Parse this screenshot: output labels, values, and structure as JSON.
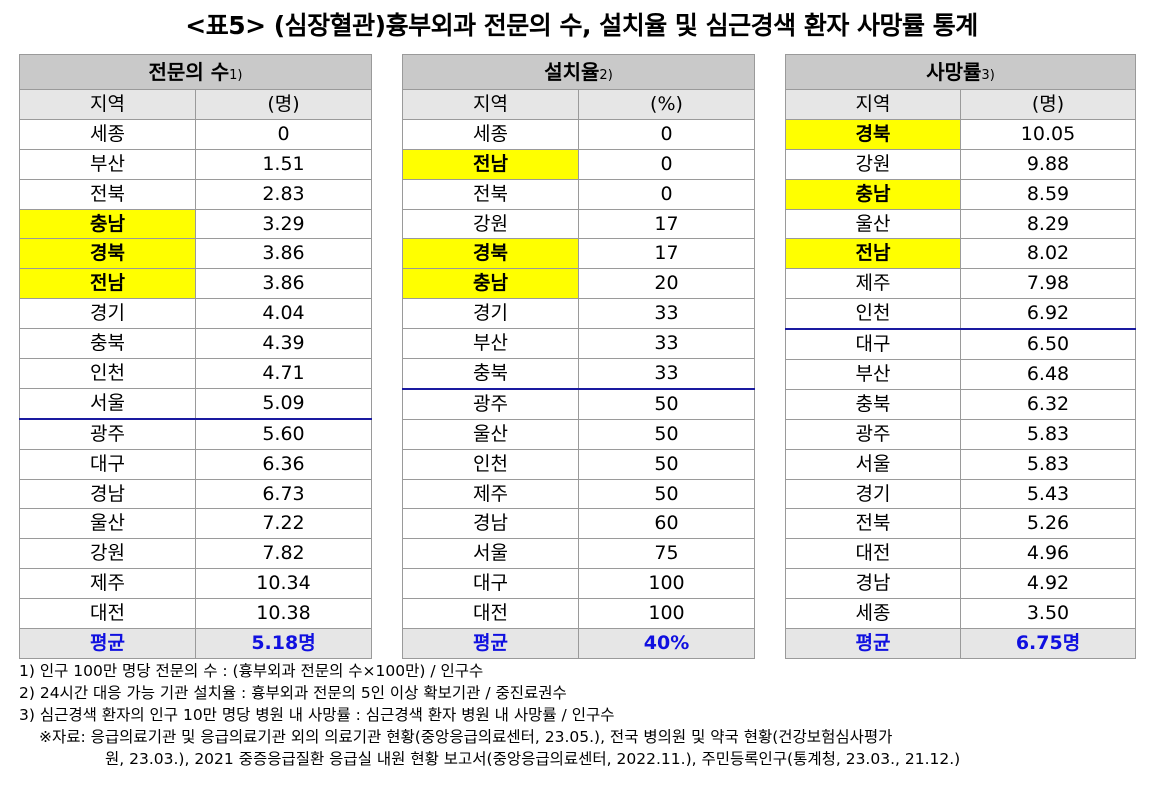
{
  "title": "<표5> (심장혈관)흉부외과 전문의 수, 설치율 및 심근경색 환자 사망률 통계",
  "tables": [
    {
      "header": "전문의 수",
      "note_mark": "1)",
      "col_region": "지역",
      "col_unit": "(명)",
      "rows": [
        {
          "region": "세종",
          "value": "0"
        },
        {
          "region": "부산",
          "value": "1.51"
        },
        {
          "region": "전북",
          "value": "2.83"
        },
        {
          "region": "충남",
          "value": "3.29",
          "highlight": true
        },
        {
          "region": "경북",
          "value": "3.86",
          "highlight": true
        },
        {
          "region": "전남",
          "value": "3.86",
          "highlight": true
        },
        {
          "region": "경기",
          "value": "4.04"
        },
        {
          "region": "충북",
          "value": "4.39"
        },
        {
          "region": "인천",
          "value": "4.71"
        },
        {
          "region": "서울",
          "value": "5.09",
          "divider": true
        },
        {
          "region": "광주",
          "value": "5.60"
        },
        {
          "region": "대구",
          "value": "6.36"
        },
        {
          "region": "경남",
          "value": "6.73"
        },
        {
          "region": "울산",
          "value": "7.22"
        },
        {
          "region": "강원",
          "value": "7.82"
        },
        {
          "region": "제주",
          "value": "10.34"
        },
        {
          "region": "대전",
          "value": "10.38"
        }
      ],
      "avg_label": "평균",
      "avg_value": "5.18명"
    },
    {
      "header": "설치율",
      "note_mark": "2)",
      "col_region": "지역",
      "col_unit": "(%)",
      "rows": [
        {
          "region": "세종",
          "value": "0"
        },
        {
          "region": "전남",
          "value": "0",
          "highlight": true
        },
        {
          "region": "전북",
          "value": "0"
        },
        {
          "region": "강원",
          "value": "17"
        },
        {
          "region": "경북",
          "value": "17",
          "highlight": true
        },
        {
          "region": "충남",
          "value": "20",
          "highlight": true
        },
        {
          "region": "경기",
          "value": "33"
        },
        {
          "region": "부산",
          "value": "33"
        },
        {
          "region": "충북",
          "value": "33",
          "divider": true
        },
        {
          "region": "광주",
          "value": "50"
        },
        {
          "region": "울산",
          "value": "50"
        },
        {
          "region": "인천",
          "value": "50"
        },
        {
          "region": "제주",
          "value": "50"
        },
        {
          "region": "경남",
          "value": "60"
        },
        {
          "region": "서울",
          "value": "75"
        },
        {
          "region": "대구",
          "value": "100"
        },
        {
          "region": "대전",
          "value": "100"
        }
      ],
      "avg_label": "평균",
      "avg_value": "40%"
    },
    {
      "header": "사망률",
      "note_mark": "3)",
      "col_region": "지역",
      "col_unit": "(명)",
      "rows": [
        {
          "region": "경북",
          "value": "10.05",
          "highlight": true
        },
        {
          "region": "강원",
          "value": "9.88"
        },
        {
          "region": "충남",
          "value": "8.59",
          "highlight": true
        },
        {
          "region": "울산",
          "value": "8.29"
        },
        {
          "region": "전남",
          "value": "8.02",
          "highlight": true
        },
        {
          "region": "제주",
          "value": "7.98"
        },
        {
          "region": "인천",
          "value": "6.92",
          "divider": true
        },
        {
          "region": "대구",
          "value": "6.50"
        },
        {
          "region": "부산",
          "value": "6.48"
        },
        {
          "region": "충북",
          "value": "6.32"
        },
        {
          "region": "광주",
          "value": "5.83"
        },
        {
          "region": "서울",
          "value": "5.83"
        },
        {
          "region": "경기",
          "value": "5.43"
        },
        {
          "region": "전북",
          "value": "5.26"
        },
        {
          "region": "대전",
          "value": "4.96"
        },
        {
          "region": "경남",
          "value": "4.92"
        },
        {
          "region": "세종",
          "value": "3.50"
        }
      ],
      "avg_label": "평균",
      "avg_value": "6.75명"
    }
  ],
  "notes": {
    "n1": "1) 인구 100만 명당 전문의 수 : (흉부외과 전문의 수×100만) / 인구수",
    "n2": "2) 24시간 대응 가능 기관 설치율 : 흉부외과 전문의 5인 이상 확보기관 / 중진료권수",
    "n3": "3) 심근경색 환자의 인구 10만 명당 병원 내 사망률 : 심근경색 환자 병원 내 사망률 / 인구수",
    "source_line1": "※자료: 응급의료기관 및 응급의료기관 외의 의료기관 현황(중앙응급의료센터, 23.05.), 전국 병의원 및 약국 현황(건강보험심사평가",
    "source_line2": "원, 23.03.), 2021 중증응급질환 응급실 내원 현황 보고서(중앙응급의료센터, 2022.11.), 주민등록인구(통계청, 23.03., 21.12.)"
  },
  "colors": {
    "header_bg": "#c9c9c9",
    "subheader_bg": "#e6e6e6",
    "highlight": "#ffff00",
    "average_text": "#1010e0",
    "divider_line": "#1a1aa0"
  }
}
